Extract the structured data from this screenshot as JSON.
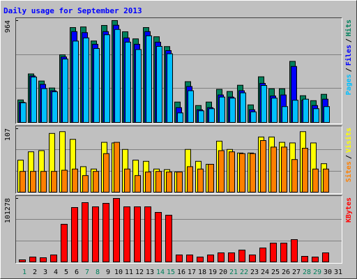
{
  "chart_data": {
    "type": "bar",
    "title": "Daily usage for September 2013",
    "categories": [
      "1",
      "2",
      "3",
      "4",
      "5",
      "6",
      "7",
      "8",
      "9",
      "10",
      "11",
      "12",
      "13",
      "14",
      "15",
      "16",
      "17",
      "18",
      "19",
      "20",
      "21",
      "22",
      "23",
      "24",
      "25",
      "26",
      "27",
      "28",
      "29",
      "30",
      "31"
    ],
    "x_label_colors": [
      "#00805c",
      "#000000",
      "#000000",
      "#000000",
      "#000000",
      "#000000",
      "#00805c",
      "#00805c",
      "#000000",
      "#000000",
      "#000000",
      "#000000",
      "#000000",
      "#00805c",
      "#00805c",
      "#000000",
      "#000000",
      "#000000",
      "#000000",
      "#000000",
      "#00805c",
      "#00805c",
      "#000000",
      "#000000",
      "#000000",
      "#000000",
      "#000000",
      "#00805c",
      "#00805c",
      "#000000",
      "#000000"
    ],
    "legend_separator": "/",
    "panels": [
      {
        "ylim": [
          0,
          964
        ],
        "yticks": [
          964
        ],
        "series": [
          {
            "name": "Hits",
            "color": "#00805c",
            "values": [
              213,
              459,
              392,
              326,
              640,
              898,
              904,
              771,
              918,
              964,
              858,
              791,
              898,
              811,
              718,
              193,
              386,
              160,
              193,
              313,
              293,
              352,
              166,
              432,
              319,
              319,
              578,
              253,
              206,
              266,
              null
            ]
          },
          {
            "name": "Files",
            "color": "#0000ff",
            "values": [
              190,
              440,
              360,
              300,
              620,
              860,
              850,
              740,
              860,
              920,
              800,
              740,
              860,
              760,
              680,
              140,
              340,
              120,
              140,
              260,
              240,
              300,
              120,
              370,
              250,
              260,
              530,
              210,
              160,
              220,
              null
            ]
          },
          {
            "name": "Pages",
            "color": "#00c0ff",
            "values": [
              186,
              430,
              320,
              290,
              600,
              770,
              800,
              700,
              830,
              880,
              760,
              690,
              820,
              720,
              650,
              90,
              300,
              110,
              130,
              240,
              230,
              280,
              100,
              350,
              230,
              150,
              210,
              220,
              130,
              150,
              null
            ]
          }
        ]
      },
      {
        "ylim": [
          0,
          107
        ],
        "yticks": [
          107
        ],
        "series": [
          {
            "name": "Visits",
            "color": "#ffff00",
            "values": [
              54,
              68,
              70,
              99,
              102,
              89,
              43,
              39,
              84,
              83,
              72,
              54,
              52,
              39,
              38,
              34,
              72,
              52,
              47,
              86,
              72,
              66,
              66,
              93,
              93,
              84,
              83,
              102,
              83,
              48,
              null
            ]
          },
          {
            "name": "Sites",
            "color": "#ff8000",
            "values": [
              35,
              35,
              35,
              35,
              37,
              39,
              28,
              35,
              65,
              84,
              39,
              28,
              34,
              35,
              34,
              34,
              43,
              39,
              47,
              70,
              68,
              65,
              65,
              87,
              76,
              76,
              55,
              74,
              39,
              39,
              null
            ]
          }
        ]
      },
      {
        "ylim": [
          0,
          101278
        ],
        "yticks": [
          101278
        ],
        "series": [
          {
            "name": "KBytes",
            "color": "#ff0000",
            "values": [
              3339,
              7790,
              6678,
              11129,
              60098,
              86808,
              94600,
              87920,
              93486,
              101278,
              87920,
              87920,
              87920,
              79020,
              74568,
              11129,
              11129,
              7790,
              11129,
              14468,
              14468,
              18920,
              11129,
              22259,
              30049,
              30049,
              35614,
              8904,
              7790,
              14468,
              null
            ]
          }
        ]
      }
    ]
  }
}
